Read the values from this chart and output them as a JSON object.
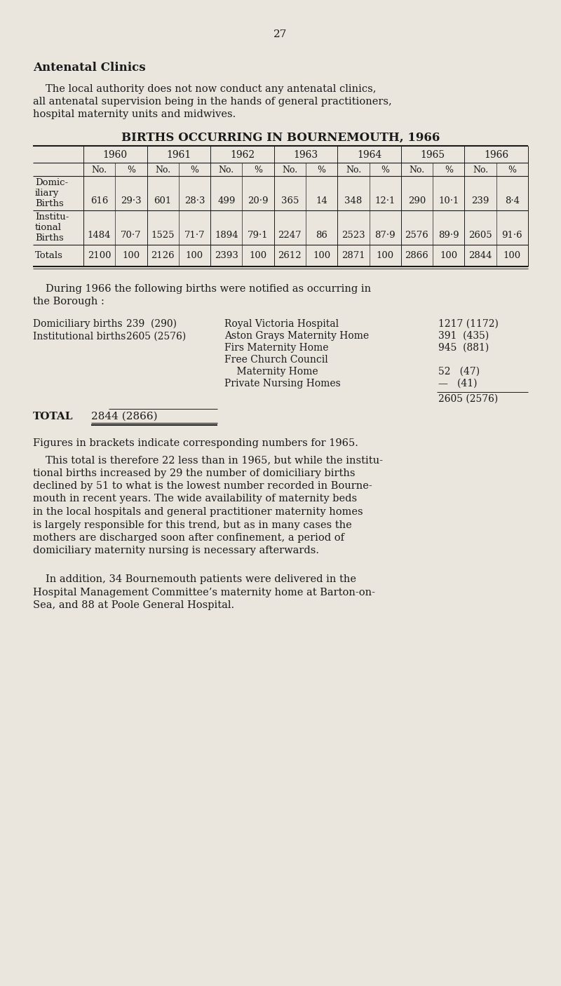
{
  "bg_color": "#eae6de",
  "text_color": "#1a1a1a",
  "page_number": "27",
  "section_title": "Antenatal Clinics",
  "intro_line1": "The local authority does not now conduct any antenatal clinics,",
  "intro_line2": "all antenatal supervision being in the hands of general practitioners,",
  "intro_line3": "hospital maternity units and midwives.",
  "table_title": "BIRTHS OCCURRING IN BOURNEMOUTH, 1966",
  "years": [
    "1960",
    "1961",
    "1962",
    "1963",
    "1964",
    "1965",
    "1966"
  ],
  "domic_label": [
    "Domic-",
    "iliary",
    "Births"
  ],
  "instit_label": [
    "Institu-",
    "tional",
    "Births"
  ],
  "totals_label": "Totals",
  "domic_data": [
    [
      "616",
      "29·3"
    ],
    [
      "601",
      "28·3"
    ],
    [
      "499",
      "20·9"
    ],
    [
      "365",
      "14"
    ],
    [
      "348",
      "12·1"
    ],
    [
      "290",
      "10·1"
    ],
    [
      "239",
      "8·4"
    ]
  ],
  "instit_data": [
    [
      "1484",
      "70·7"
    ],
    [
      "1525",
      "71·7"
    ],
    [
      "1894",
      "79·1"
    ],
    [
      "2247",
      "86"
    ],
    [
      "2523",
      "87·9"
    ],
    [
      "2576",
      "89·9"
    ],
    [
      "2605",
      "91·6"
    ]
  ],
  "totals_data": [
    [
      "2100",
      "100"
    ],
    [
      "2126",
      "100"
    ],
    [
      "2393",
      "100"
    ],
    [
      "2612",
      "100"
    ],
    [
      "2871",
      "100"
    ],
    [
      "2866",
      "100"
    ],
    [
      "2844",
      "100"
    ]
  ],
  "during_line1": "During 1966 the following births were notified as occurring in",
  "during_line2": "the Borough :",
  "dom_births_label": "Domiciliary births",
  "dom_births_val": "239  (290)",
  "inst_births_label": "Institutional births",
  "inst_births_val": "2605 (2576)",
  "inst_name1": "Royal Victoria Hospital",
  "inst_val1": "1217 (1172)",
  "inst_name2": "Aston Grays Maternity Home",
  "inst_val2": "391  (435)",
  "inst_name3": "Firs Maternity Home",
  "inst_val3": "945  (881)",
  "inst_name4": "Free Church Council",
  "inst_name5": "    Maternity Home",
  "inst_val5": "52   (47)",
  "inst_name6": "Private Nursing Homes",
  "inst_val6": "—   (41)",
  "inst_total": "2605 (2576)",
  "total_label": "TOTAL",
  "total_val": "2844 (2866)",
  "figures_note": "Figures in brackets indicate corresponding numbers for 1965.",
  "para1_line1": "This total is therefore 22 less than in 1965, but while the institu-",
  "para1_line2": "tional births increased by 29 the number of domiciliary births",
  "para1_line3": "declined by 51 to what is the lowest number recorded in Bourne-",
  "para1_line4": "mouth in recent years. The wide availability of maternity beds",
  "para1_line5": "in the local hospitals and general practitioner maternity homes",
  "para1_line6": "is largely responsible for this trend, but as in many cases the",
  "para1_line7": "mothers are discharged soon after confinement, a period of",
  "para1_line8": "domiciliary maternity nursing is necessary afterwards.",
  "para2_line1": "In addition, 34 Bournemouth patients were delivered in the",
  "para2_line2": "Hospital Management Committee’s maternity home at Barton-on-",
  "para2_line3": "Sea, and 88 at Poole General Hospital."
}
